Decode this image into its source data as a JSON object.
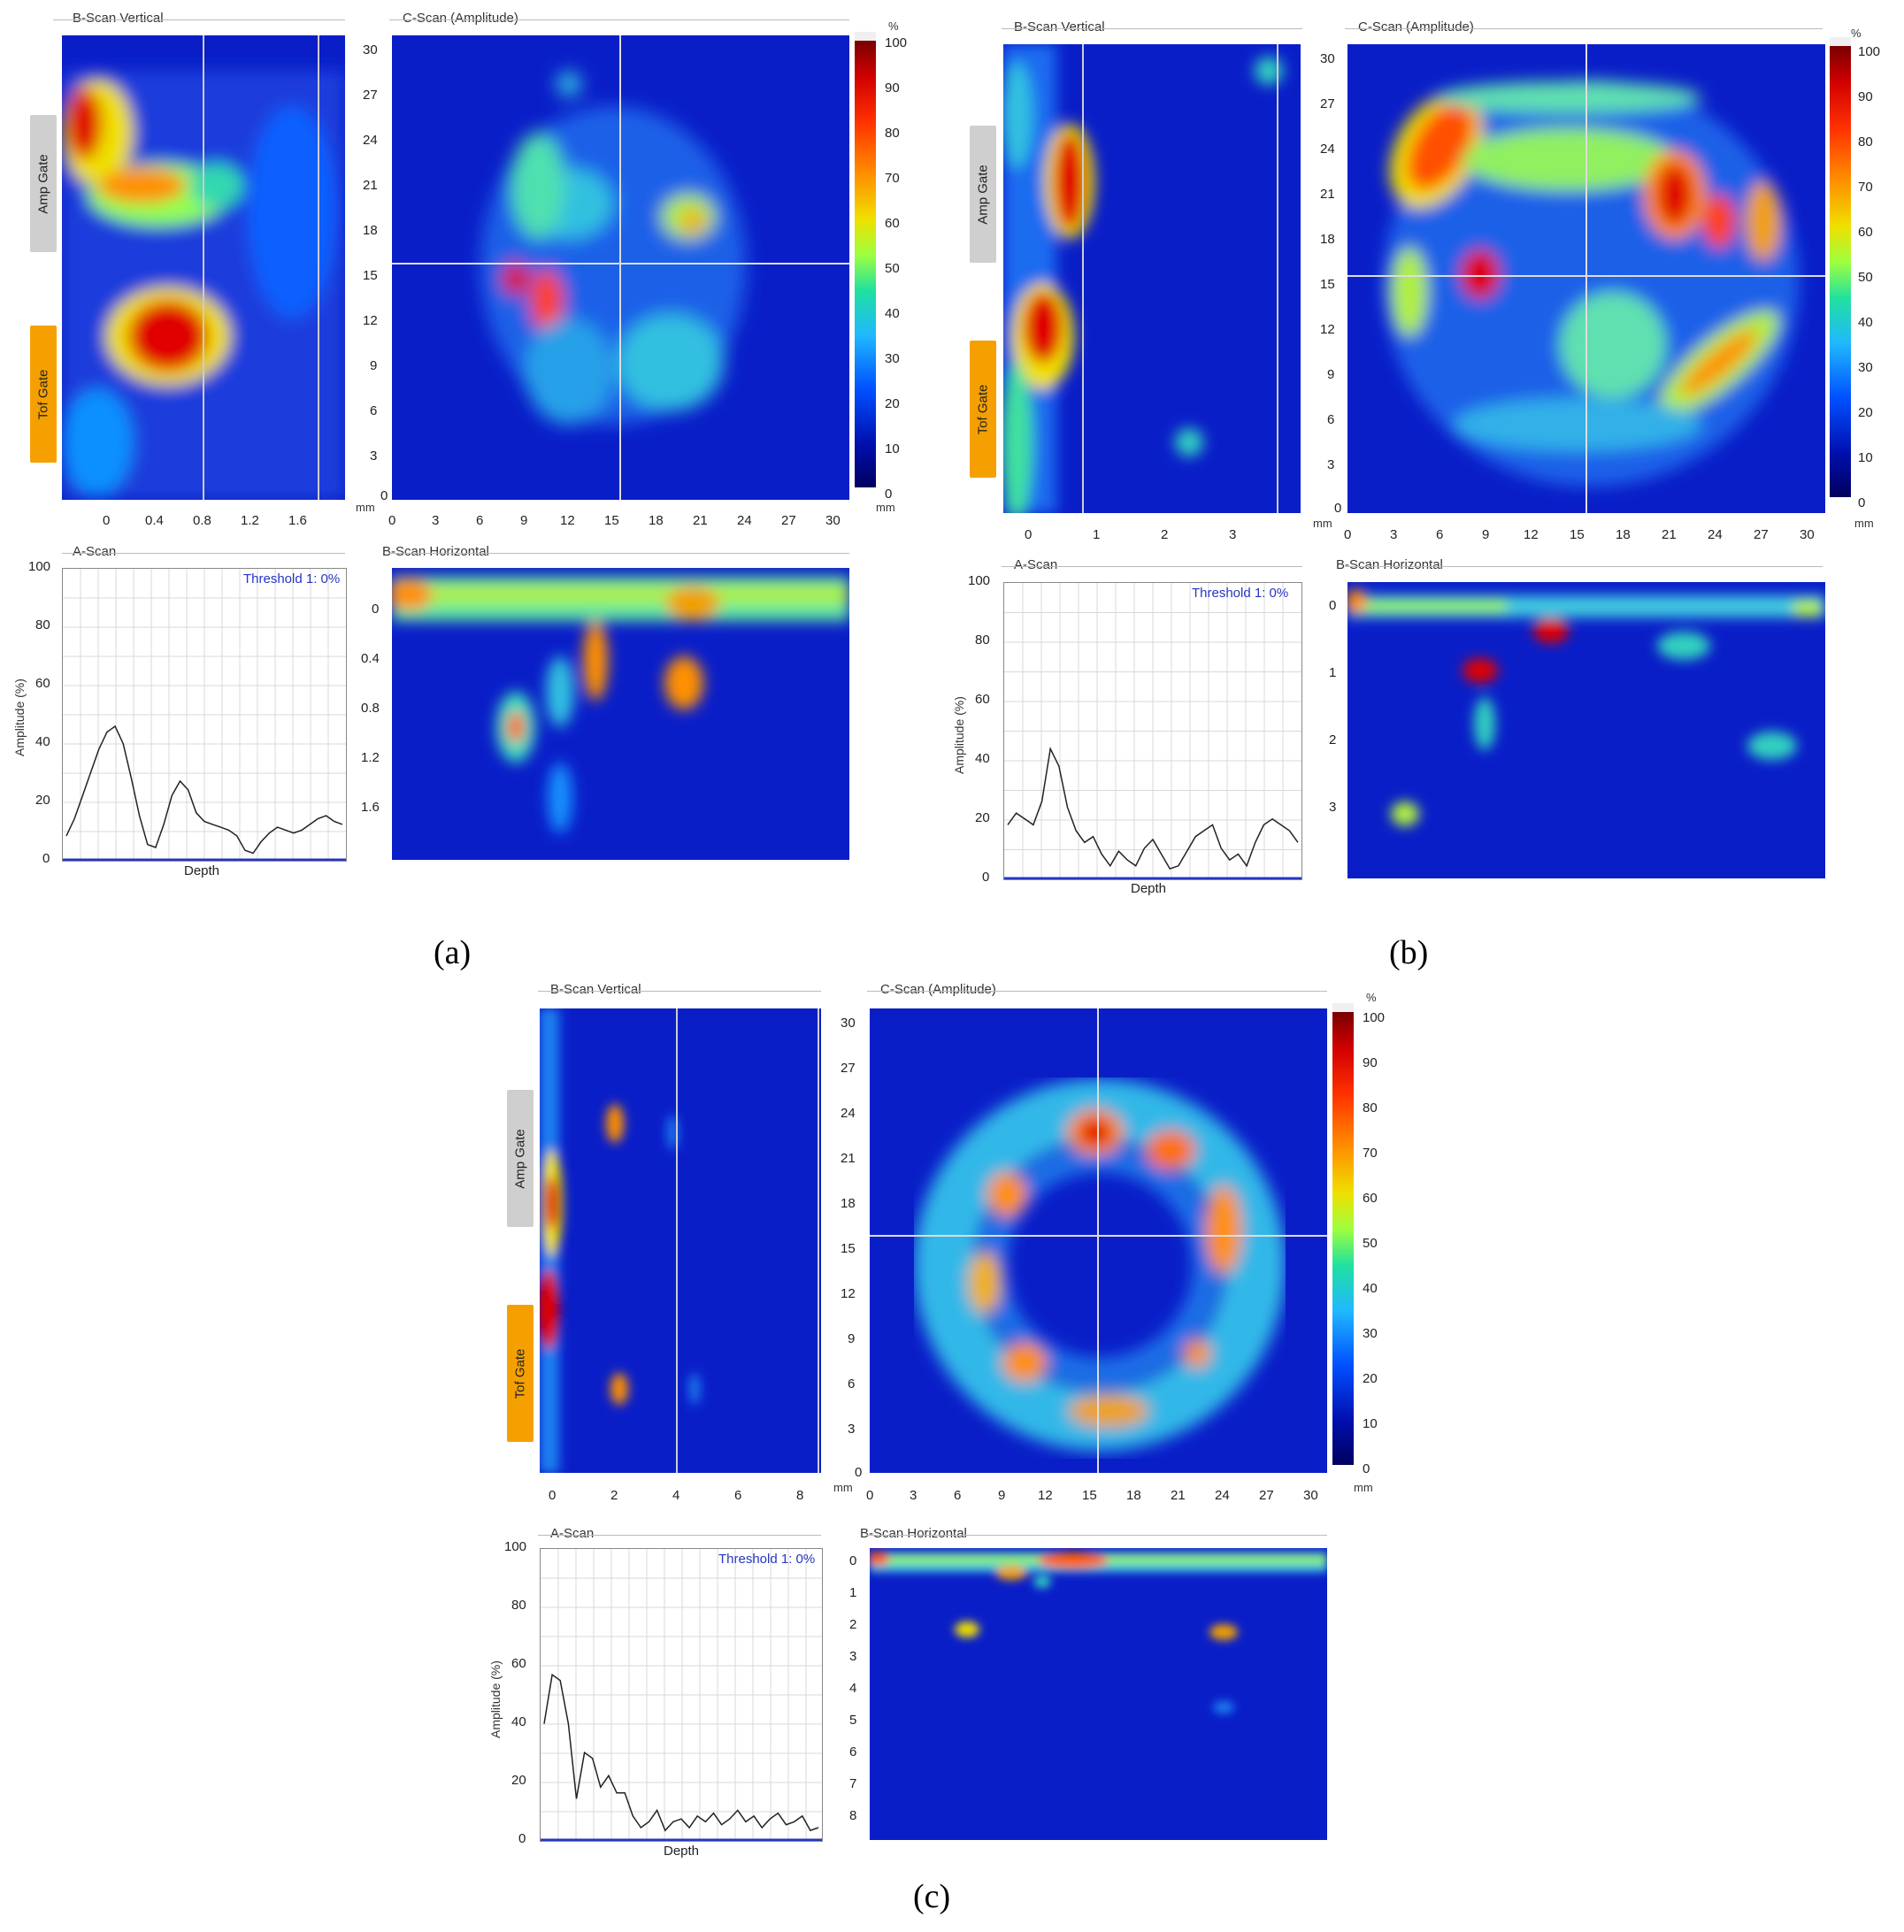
{
  "labels": {
    "bscan_vertical": "B-Scan Vertical",
    "cscan": "C-Scan (Amplitude)",
    "ascan": "A-Scan",
    "bscan_horizontal": "B-Scan Horizontal",
    "amp_gate": "Amp Gate",
    "tof_gate": "Tof Gate",
    "threshold": "Threshold 1: 0%",
    "amplitude_axis": "Amplitude (%)",
    "depth_axis": "Depth",
    "unit_mm": "mm",
    "unit_pct": "%"
  },
  "colors": {
    "scan_background": "#0a1ec8",
    "amp_gate": "#cfcfcf",
    "tof_gate": "#f5a000",
    "threshold_text": "#2636c0"
  },
  "panels": [
    {
      "caption": "(a)",
      "cscan_x_ticks": [
        "0",
        "3",
        "6",
        "9",
        "12",
        "15",
        "18",
        "21",
        "24",
        "27",
        "30"
      ],
      "cscan_y_ticks": [
        "30",
        "27",
        "24",
        "21",
        "18",
        "15",
        "12",
        "9",
        "6",
        "3",
        "0"
      ],
      "colorbar_ticks": [
        "100",
        "90",
        "80",
        "70",
        "60",
        "50",
        "40",
        "30",
        "20",
        "10",
        "0"
      ],
      "bscan_v_x_ticks": [
        "0",
        "0.4",
        "0.8",
        "1.2",
        "1.6"
      ],
      "bscan_h_y_ticks": [
        "0",
        "0.4",
        "0.8",
        "1.2",
        "1.6"
      ],
      "ascan_y_ticks": [
        "100",
        "80",
        "60",
        "40",
        "20",
        "0"
      ],
      "ascan_trace": [
        8,
        14,
        22,
        30,
        38,
        44,
        46,
        40,
        28,
        15,
        5,
        4,
        12,
        22,
        27,
        24,
        16,
        13,
        12,
        11,
        10,
        8,
        3,
        2,
        6,
        9,
        11,
        10,
        9,
        10,
        12,
        14,
        15,
        13,
        12
      ]
    },
    {
      "caption": "(b)",
      "cscan_x_ticks": [
        "0",
        "3",
        "6",
        "9",
        "12",
        "15",
        "18",
        "21",
        "24",
        "27",
        "30"
      ],
      "cscan_y_ticks": [
        "30",
        "27",
        "24",
        "21",
        "18",
        "15",
        "12",
        "9",
        "6",
        "3",
        "0"
      ],
      "colorbar_ticks": [
        "100",
        "90",
        "80",
        "70",
        "60",
        "50",
        "40",
        "30",
        "20",
        "10",
        "0"
      ],
      "bscan_v_x_ticks": [
        "0",
        "1",
        "2",
        "3"
      ],
      "bscan_h_y_ticks": [
        "0",
        "1",
        "2",
        "3"
      ],
      "ascan_y_ticks": [
        "100",
        "80",
        "60",
        "40",
        "20",
        "0"
      ],
      "ascan_trace": [
        18,
        22,
        20,
        18,
        26,
        44,
        38,
        24,
        16,
        12,
        14,
        8,
        4,
        9,
        6,
        4,
        10,
        13,
        8,
        3,
        4,
        9,
        14,
        16,
        18,
        10,
        6,
        8,
        4,
        12,
        18,
        20,
        18,
        16,
        12
      ]
    },
    {
      "caption": "(c)",
      "cscan_x_ticks": [
        "0",
        "3",
        "6",
        "9",
        "12",
        "15",
        "18",
        "21",
        "24",
        "27",
        "30"
      ],
      "cscan_y_ticks": [
        "30",
        "27",
        "24",
        "21",
        "18",
        "15",
        "12",
        "9",
        "6",
        "3",
        "0"
      ],
      "colorbar_ticks": [
        "100",
        "90",
        "80",
        "70",
        "60",
        "50",
        "40",
        "30",
        "20",
        "10",
        "0"
      ],
      "bscan_v_x_ticks": [
        "0",
        "2",
        "4",
        "6",
        "8"
      ],
      "bscan_h_y_ticks": [
        "0",
        "1",
        "2",
        "3",
        "4",
        "5",
        "6",
        "7",
        "8"
      ],
      "ascan_y_ticks": [
        "100",
        "80",
        "60",
        "40",
        "20",
        "0"
      ],
      "ascan_trace": [
        40,
        57,
        55,
        40,
        14,
        30,
        28,
        18,
        22,
        16,
        16,
        8,
        4,
        6,
        10,
        3,
        6,
        7,
        4,
        8,
        6,
        9,
        5,
        7,
        10,
        6,
        8,
        4,
        7,
        9,
        5,
        6,
        8,
        3,
        4
      ]
    }
  ]
}
